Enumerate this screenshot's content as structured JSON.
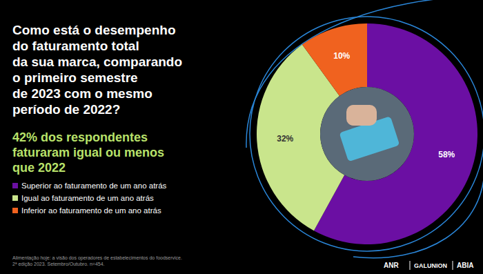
{
  "chart_data": {
    "type": "pie",
    "title": "Como está o desempenho\ndo faturamento total\nda sua marca, comparando\no primeiro semestre\nde 2023 com o mesmo\nperíodo de 2022?",
    "subtitle": "42% dos respondentes\nfaturaram igual ou menos\nque 2022",
    "categories": [
      "Superior ao faturamento de um ano atrás",
      "Igual ao faturamento de um ano atrás",
      "Inferior ao faturamento de um ano atrás"
    ],
    "values": [
      58,
      32,
      10
    ],
    "value_labels": [
      "58%",
      "32%",
      "10%"
    ],
    "colors": [
      "#6b0fa3",
      "#c9e58c",
      "#f0621f"
    ],
    "data_labels": true,
    "legend": "left",
    "source": "Alimentação hoje: a visão dos operadores de estabelecimentos do foodservice.\n2ª edição 2023. Setembro/Outubro. n=454.",
    "logos": [
      "ANR",
      "GALUNION",
      "ABIA"
    ]
  }
}
